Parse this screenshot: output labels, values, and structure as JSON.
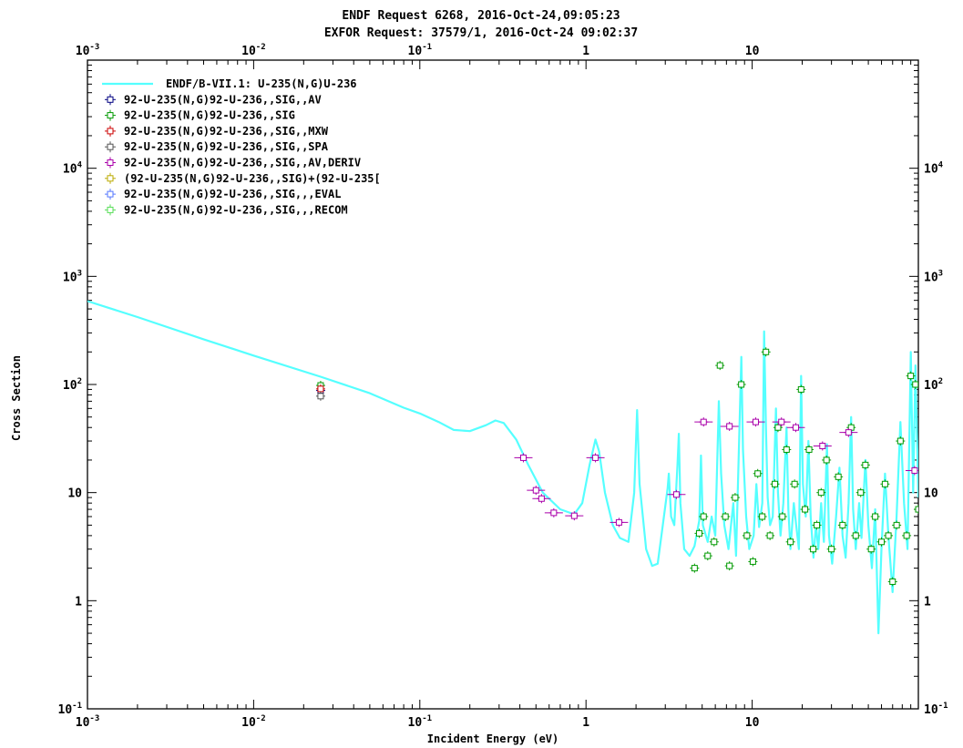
{
  "titles": [
    "ENDF Request 6268, 2016-Oct-24,09:05:23",
    "EXFOR Request: 37579/1, 2016-Oct-24 09:02:37"
  ],
  "chart_data": {
    "type": "line",
    "xlabel": "Incident Energy (eV)",
    "ylabel": "Cross Section",
    "xscale": "log",
    "yscale": "log",
    "xlim": [
      0.001,
      100
    ],
    "ylim": [
      0.1,
      100000
    ],
    "x_ticks": [
      {
        "base": "10",
        "exp": "-3",
        "v": 0.001
      },
      {
        "base": "10",
        "exp": "-2",
        "v": 0.01
      },
      {
        "base": "10",
        "exp": "-1",
        "v": 0.1
      },
      {
        "base": "1",
        "exp": "",
        "v": 1
      },
      {
        "base": "10",
        "exp": "",
        "v": 10
      }
    ],
    "y_ticks": [
      {
        "base": "10",
        "exp": "-1",
        "v": 0.1
      },
      {
        "base": "1",
        "exp": "",
        "v": 1
      },
      {
        "base": "10",
        "exp": "",
        "v": 10
      },
      {
        "base": "10",
        "exp": "2",
        "v": 100
      },
      {
        "base": "10",
        "exp": "3",
        "v": 1000
      },
      {
        "base": "10",
        "exp": "4",
        "v": 10000
      }
    ],
    "legend_position": "top-left",
    "series": [
      {
        "name": "ENDF/B-VII.1: U-235(N,G)U-236",
        "color": "#55ffff",
        "kind": "line",
        "points": [
          [
            0.001,
            590
          ],
          [
            0.002,
            420
          ],
          [
            0.005,
            262
          ],
          [
            0.01,
            185
          ],
          [
            0.0253,
            118
          ],
          [
            0.05,
            83
          ],
          [
            0.08,
            61
          ],
          [
            0.1,
            54
          ],
          [
            0.13,
            45
          ],
          [
            0.16,
            38
          ],
          [
            0.2,
            37
          ],
          [
            0.25,
            42
          ],
          [
            0.285,
            46.5
          ],
          [
            0.32,
            44
          ],
          [
            0.38,
            31
          ],
          [
            0.45,
            18
          ],
          [
            0.55,
            10
          ],
          [
            0.7,
            7
          ],
          [
            0.85,
            6.3
          ],
          [
            0.95,
            8
          ],
          [
            1.05,
            18
          ],
          [
            1.14,
            31
          ],
          [
            1.2,
            24
          ],
          [
            1.3,
            10
          ],
          [
            1.45,
            5
          ],
          [
            1.6,
            3.8
          ],
          [
            1.8,
            3.5
          ],
          [
            1.95,
            10
          ],
          [
            2.03,
            58
          ],
          [
            2.1,
            12
          ],
          [
            2.3,
            3
          ],
          [
            2.5,
            2.1
          ],
          [
            2.7,
            2.2
          ],
          [
            2.9,
            5
          ],
          [
            3.1,
            11
          ],
          [
            3.15,
            15
          ],
          [
            3.25,
            6
          ],
          [
            3.4,
            5
          ],
          [
            3.55,
            18
          ],
          [
            3.62,
            35
          ],
          [
            3.7,
            8
          ],
          [
            3.9,
            3
          ],
          [
            4.2,
            2.6
          ],
          [
            4.5,
            3.2
          ],
          [
            4.8,
            5.5
          ],
          [
            4.92,
            22
          ],
          [
            5.05,
            5
          ],
          [
            5.4,
            3.5
          ],
          [
            5.7,
            6
          ],
          [
            6.0,
            4
          ],
          [
            6.3,
            70
          ],
          [
            6.5,
            15
          ],
          [
            6.8,
            5
          ],
          [
            7.2,
            3
          ],
          [
            7.7,
            8
          ],
          [
            8.0,
            2.6
          ],
          [
            8.6,
            180
          ],
          [
            8.8,
            25
          ],
          [
            9.2,
            6
          ],
          [
            9.6,
            3
          ],
          [
            10.2,
            4
          ],
          [
            10.6,
            12
          ],
          [
            11.0,
            4.8
          ],
          [
            11.5,
            8
          ],
          [
            11.8,
            310
          ],
          [
            12.1,
            40
          ],
          [
            12.4,
            9
          ],
          [
            12.8,
            5
          ],
          [
            13.3,
            6
          ],
          [
            13.9,
            60
          ],
          [
            14.3,
            10
          ],
          [
            14.8,
            4
          ],
          [
            15.4,
            8
          ],
          [
            16.1,
            40
          ],
          [
            16.5,
            7
          ],
          [
            17.0,
            3
          ],
          [
            17.8,
            8
          ],
          [
            18.4,
            5
          ],
          [
            19.1,
            3
          ],
          [
            19.7,
            120
          ],
          [
            20.2,
            12
          ],
          [
            21.0,
            6
          ],
          [
            21.8,
            30
          ],
          [
            22.5,
            6
          ],
          [
            23.4,
            2.5
          ],
          [
            24.2,
            5
          ],
          [
            25.0,
            3
          ],
          [
            26.0,
            8
          ],
          [
            27.0,
            3.5
          ],
          [
            28.2,
            28
          ],
          [
            29.0,
            4
          ],
          [
            30.3,
            2.2
          ],
          [
            32.0,
            6
          ],
          [
            33.5,
            17
          ],
          [
            35.0,
            4
          ],
          [
            36.5,
            2.5
          ],
          [
            38.0,
            8
          ],
          [
            39.4,
            50
          ],
          [
            40.5,
            7
          ],
          [
            42.0,
            3
          ],
          [
            44.0,
            8
          ],
          [
            45.5,
            3.8
          ],
          [
            48.0,
            20
          ],
          [
            50.0,
            5
          ],
          [
            52.5,
            2
          ],
          [
            55.0,
            7
          ],
          [
            57.5,
            0.5
          ],
          [
            60.0,
            3
          ],
          [
            63.0,
            15
          ],
          [
            66.0,
            4
          ],
          [
            70.0,
            1.2
          ],
          [
            74.0,
            6
          ],
          [
            78.0,
            45
          ],
          [
            82.0,
            8
          ],
          [
            86.0,
            3
          ],
          [
            90.0,
            200
          ],
          [
            93.0,
            10
          ],
          [
            96.0,
            150
          ],
          [
            100.0,
            9
          ]
        ]
      },
      {
        "name": "92-U-235(N,G)92-U-236,,SIG,,AV",
        "color": "#000080",
        "kind": "marker",
        "points": [
          [
            0.0253,
            88
          ]
        ]
      },
      {
        "name": "92-U-235(N,G)92-U-236,,SIG",
        "color": "#009900",
        "kind": "marker",
        "points": [
          [
            0.0253,
            98
          ],
          [
            4.5,
            2.0
          ],
          [
            4.8,
            4.2
          ],
          [
            5.1,
            6.0
          ],
          [
            5.4,
            2.6
          ],
          [
            5.9,
            3.5
          ],
          [
            6.4,
            150
          ],
          [
            6.9,
            6.0
          ],
          [
            7.3,
            2.1
          ],
          [
            7.9,
            9.0
          ],
          [
            8.6,
            100
          ],
          [
            9.3,
            4.0
          ],
          [
            10.1,
            2.3
          ],
          [
            10.8,
            15
          ],
          [
            11.5,
            6.0
          ],
          [
            12.1,
            200
          ],
          [
            12.8,
            4.0
          ],
          [
            13.7,
            12
          ],
          [
            14.3,
            40
          ],
          [
            15.2,
            6.0
          ],
          [
            16.1,
            25
          ],
          [
            17.0,
            3.5
          ],
          [
            18.0,
            12
          ],
          [
            19.7,
            90
          ],
          [
            20.8,
            7.0
          ],
          [
            22.0,
            25
          ],
          [
            23.3,
            3.0
          ],
          [
            24.5,
            5.0
          ],
          [
            26.0,
            10
          ],
          [
            28.0,
            20
          ],
          [
            30.0,
            3.0
          ],
          [
            33.0,
            14
          ],
          [
            35.0,
            5.0
          ],
          [
            39.4,
            40
          ],
          [
            42.0,
            4.0
          ],
          [
            45.0,
            10
          ],
          [
            48.0,
            18
          ],
          [
            52.0,
            3.0
          ],
          [
            55.0,
            6.0
          ],
          [
            60.0,
            3.5
          ],
          [
            63.0,
            12
          ],
          [
            66.0,
            4.0
          ],
          [
            70.0,
            1.5
          ],
          [
            74.0,
            5.0
          ],
          [
            78.0,
            30
          ],
          [
            85.0,
            4.0
          ],
          [
            90.0,
            120
          ],
          [
            96.0,
            100
          ],
          [
            100.0,
            7.0
          ]
        ]
      },
      {
        "name": "92-U-235(N,G)92-U-236,,SIG,,MXW",
        "color": "#cc0000",
        "kind": "marker",
        "points": [
          [
            0.0253,
            91
          ]
        ]
      },
      {
        "name": "92-U-235(N,G)92-U-236,,SIG,,SPA",
        "color": "#555555",
        "kind": "marker",
        "points": [
          [
            0.0253,
            78
          ]
        ]
      },
      {
        "name": "92-U-235(N,G)92-U-236,,SIG,,AV,DERIV",
        "color": "#aa00aa",
        "kind": "marker",
        "points": [
          [
            0.42,
            21
          ],
          [
            0.5,
            10.5
          ],
          [
            0.54,
            8.8
          ],
          [
            0.64,
            6.5
          ],
          [
            0.85,
            6.1
          ],
          [
            1.14,
            21
          ],
          [
            1.58,
            5.3
          ],
          [
            3.5,
            9.6
          ],
          [
            5.1,
            45
          ],
          [
            7.3,
            41
          ],
          [
            10.5,
            45
          ],
          [
            15.0,
            45
          ],
          [
            18.3,
            40
          ],
          [
            26.5,
            27
          ],
          [
            38.0,
            36
          ],
          [
            95.0,
            16
          ]
        ]
      },
      {
        "name": "(92-U-235(N,G)92-U-236,,SIG)+(92-U-235[",
        "color": "#bbaa00",
        "kind": "marker",
        "points": []
      },
      {
        "name": "92-U-235(N,G)92-U-236,,SIG,,,EVAL",
        "color": "#5577ff",
        "kind": "marker",
        "points": []
      },
      {
        "name": "92-U-235(N,G)92-U-236,,SIG,,,RECOM",
        "color": "#55dd55",
        "kind": "marker",
        "points": []
      }
    ]
  }
}
